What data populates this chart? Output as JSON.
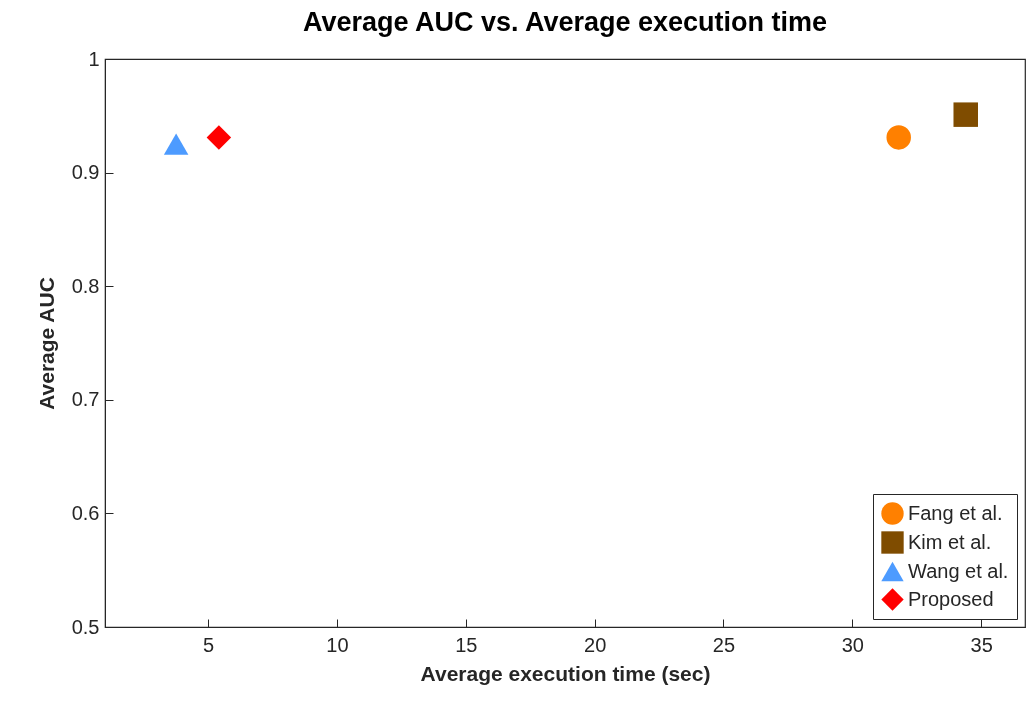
{
  "chart_data": {
    "type": "scatter",
    "title": "Average AUC vs. Average execution time",
    "xlabel": "Average execution time (sec)",
    "ylabel": "Average AUC",
    "xlim": [
      1.0,
      36.7
    ],
    "xticks": [
      5,
      10,
      15,
      20,
      25,
      30,
      35
    ],
    "ylim": [
      0.5,
      1
    ],
    "yticks": [
      0.5,
      0.6,
      0.7,
      0.8,
      0.9,
      1
    ],
    "legend": "bottom right",
    "grid": false,
    "series": [
      {
        "name": "Fang et al.",
        "color": "#ff8000",
        "marker": "circle",
        "x": [
          31.8
        ],
        "values": [
          0.931
        ]
      },
      {
        "name": "Kim et al.",
        "color": "#7f4c00",
        "marker": "square",
        "x": [
          34.4
        ],
        "values": [
          0.951
        ]
      },
      {
        "name": "Wang et al.",
        "color": "#4d9bff",
        "marker": "triangle",
        "x": [
          3.76
        ],
        "values": [
          0.925
        ]
      },
      {
        "name": "Proposed",
        "color": "#ff0000",
        "marker": "diamond",
        "x": [
          5.42
        ],
        "values": [
          0.931
        ]
      }
    ]
  }
}
